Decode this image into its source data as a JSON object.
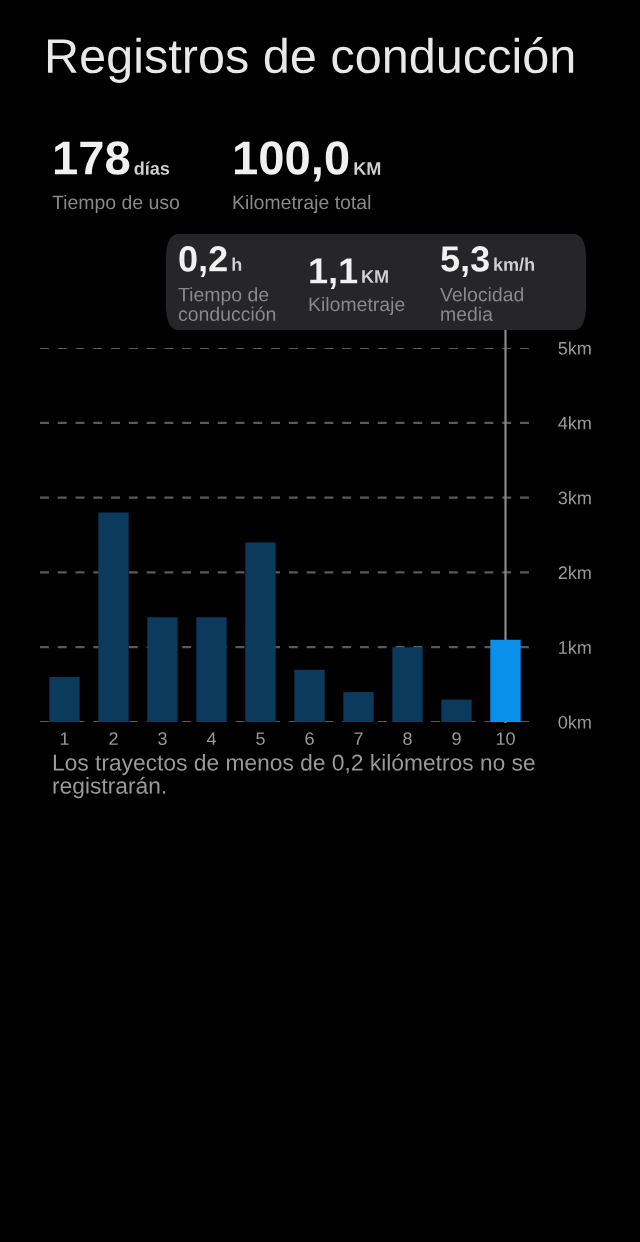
{
  "chart_data": {
    "type": "bar",
    "title": "Registros de conducción",
    "categories": [
      "1",
      "2",
      "3",
      "4",
      "5",
      "6",
      "7",
      "8",
      "9",
      "10"
    ],
    "values": [
      0.6,
      2.8,
      1.4,
      1.4,
      2.4,
      0.7,
      0.4,
      1.0,
      0.3,
      1.1
    ],
    "colors": [
      "#0b3a5c",
      "#0b3a5c",
      "#0b3a5c",
      "#0b3a5c",
      "#0b3a5c",
      "#0b3a5c",
      "#0b3a5c",
      "#0b3a5c",
      "#0b3a5c",
      "#0a90ea"
    ],
    "ylim": [
      0,
      5
    ],
    "yticks": [
      {
        "value": 0,
        "label": "0km"
      },
      {
        "value": 1,
        "label": "1km"
      },
      {
        "value": 2,
        "label": "2km"
      },
      {
        "value": 3,
        "label": "3km"
      },
      {
        "value": 4,
        "label": "4km"
      },
      {
        "value": 5,
        "label": "5km"
      }
    ],
    "grid": "y",
    "ref_lines": [
      {
        "axis": "x",
        "value": "10",
        "color": "#8a8a8a"
      }
    ],
    "annotations": [
      "178",
      "días",
      "Tiempo de uso",
      "100,0",
      "KM",
      "Kilometraje total",
      "0,2",
      "h",
      "Tiempo de\nconducción",
      "1,1",
      "KM",
      "Kilometraje",
      "5,3",
      "km/h",
      "Velocidad\nmedia",
      "Los trayectos de menos de 0,2 kilómetros no se registrarán."
    ]
  }
}
